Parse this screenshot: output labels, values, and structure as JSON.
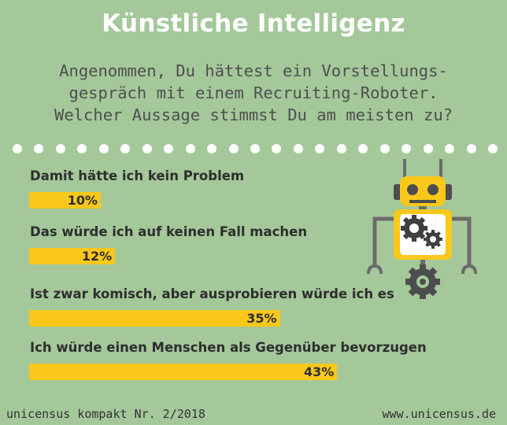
{
  "title": "Künstliche Intelligenz",
  "question": [
    "Angenommen, Du hättest ein Vorstellungs-",
    "gespräch mit einem Recruiting-Roboter.",
    "Welcher Aussage stimmst Du am meisten zu?"
  ],
  "dot_count": 23,
  "chart_data": {
    "type": "bar",
    "orientation": "horizontal",
    "categories": [
      "Damit hätte ich kein Problem",
      "Das würde ich auf keinen Fall machen",
      "Ist zwar komisch, aber ausprobieren würde ich es",
      "Ich würde einen Menschen als Gegenüber bevorzugen"
    ],
    "values": [
      10,
      12,
      35,
      43
    ],
    "value_labels": [
      "10%",
      "12%",
      "35%",
      "43%"
    ],
    "unit": "%",
    "xlim": [
      0,
      100
    ],
    "grid": false,
    "bar_color": "#f9c81b"
  },
  "footer": {
    "left": "unicensus kompakt Nr. 2/2018",
    "right": "www.unicensus.de"
  },
  "colors": {
    "background": "#a4c89a",
    "accent": "#f9c81b",
    "robot_body": "#f9c81b",
    "robot_gray": "#6b6b6b"
  },
  "illustration": "robot-with-gears-icon"
}
